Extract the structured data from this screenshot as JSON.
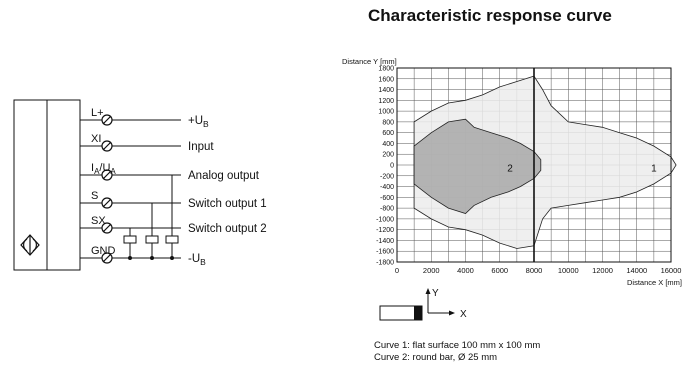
{
  "title": "Characteristic response curve",
  "wiring": {
    "terminals": [
      {
        "pin": "L+",
        "signal": "+U",
        "sub": "B"
      },
      {
        "pin": "XI",
        "signal": "Input",
        "sub": ""
      },
      {
        "pin": "I",
        "pin_sub": "A",
        "pin_mid": "/U",
        "pin_sub2": "A",
        "signal": "Analog output",
        "sub": ""
      },
      {
        "pin": "S",
        "signal": "Switch output 1",
        "sub": ""
      },
      {
        "pin": "SX",
        "signal": "Switch output 2",
        "sub": ""
      },
      {
        "pin": "GND",
        "signal": "-U",
        "sub": "B"
      }
    ]
  },
  "axis_glyph": {
    "x_label": "X",
    "y_label": "Y"
  },
  "notes": [
    "Curve 1: flat surface 100 mm x 100 mm",
    "Curve 2: round bar, Ø 25 mm"
  ],
  "chart_data": {
    "type": "area",
    "ylabel": "Distance Y [mm]",
    "xlabel": "Distance X [mm]",
    "xlim": [
      0,
      16000
    ],
    "ylim": [
      -1800,
      1800
    ],
    "x_ticks": [
      0,
      2000,
      4000,
      6000,
      8000,
      10000,
      12000,
      14000,
      16000
    ],
    "y_ticks": [
      1800,
      1600,
      1400,
      1200,
      1000,
      800,
      600,
      400,
      200,
      0,
      -200,
      -400,
      -600,
      -800,
      -1000,
      -1200,
      -1400,
      -1600,
      -1800
    ],
    "x_minor_step": 1000,
    "grid": true,
    "marker_line_x": 8000,
    "series": [
      {
        "name": "1",
        "fill": "#ececec",
        "points": [
          [
            1000,
            800
          ],
          [
            2000,
            1000
          ],
          [
            3000,
            1150
          ],
          [
            4000,
            1200
          ],
          [
            5000,
            1300
          ],
          [
            6000,
            1450
          ],
          [
            7000,
            1550
          ],
          [
            8000,
            1650
          ],
          [
            8500,
            1400
          ],
          [
            9000,
            1100
          ],
          [
            10000,
            800
          ],
          [
            11000,
            750
          ],
          [
            12000,
            700
          ],
          [
            13000,
            600
          ],
          [
            14000,
            500
          ],
          [
            15000,
            350
          ],
          [
            16000,
            150
          ],
          [
            16300,
            0
          ],
          [
            16000,
            -150
          ],
          [
            15000,
            -350
          ],
          [
            14000,
            -500
          ],
          [
            13000,
            -600
          ],
          [
            12000,
            -650
          ],
          [
            11000,
            -700
          ],
          [
            10000,
            -750
          ],
          [
            9000,
            -800
          ],
          [
            8500,
            -1000
          ],
          [
            8000,
            -1500
          ],
          [
            7000,
            -1550
          ],
          [
            6000,
            -1450
          ],
          [
            5000,
            -1300
          ],
          [
            4000,
            -1200
          ],
          [
            3000,
            -1150
          ],
          [
            2000,
            -1000
          ],
          [
            1000,
            -800
          ]
        ],
        "label_at": [
          15000,
          -50
        ]
      },
      {
        "name": "2",
        "fill": "#a8a8a8",
        "points": [
          [
            1000,
            350
          ],
          [
            2000,
            600
          ],
          [
            3000,
            800
          ],
          [
            4000,
            850
          ],
          [
            4500,
            700
          ],
          [
            5500,
            600
          ],
          [
            6500,
            500
          ],
          [
            7200,
            400
          ],
          [
            8000,
            250
          ],
          [
            8400,
            100
          ],
          [
            8400,
            -100
          ],
          [
            8000,
            -250
          ],
          [
            7200,
            -400
          ],
          [
            6500,
            -500
          ],
          [
            5500,
            -600
          ],
          [
            4500,
            -750
          ],
          [
            4000,
            -900
          ],
          [
            3000,
            -800
          ],
          [
            2000,
            -600
          ],
          [
            1000,
            -350
          ]
        ],
        "label_at": [
          6600,
          -50
        ]
      }
    ]
  }
}
